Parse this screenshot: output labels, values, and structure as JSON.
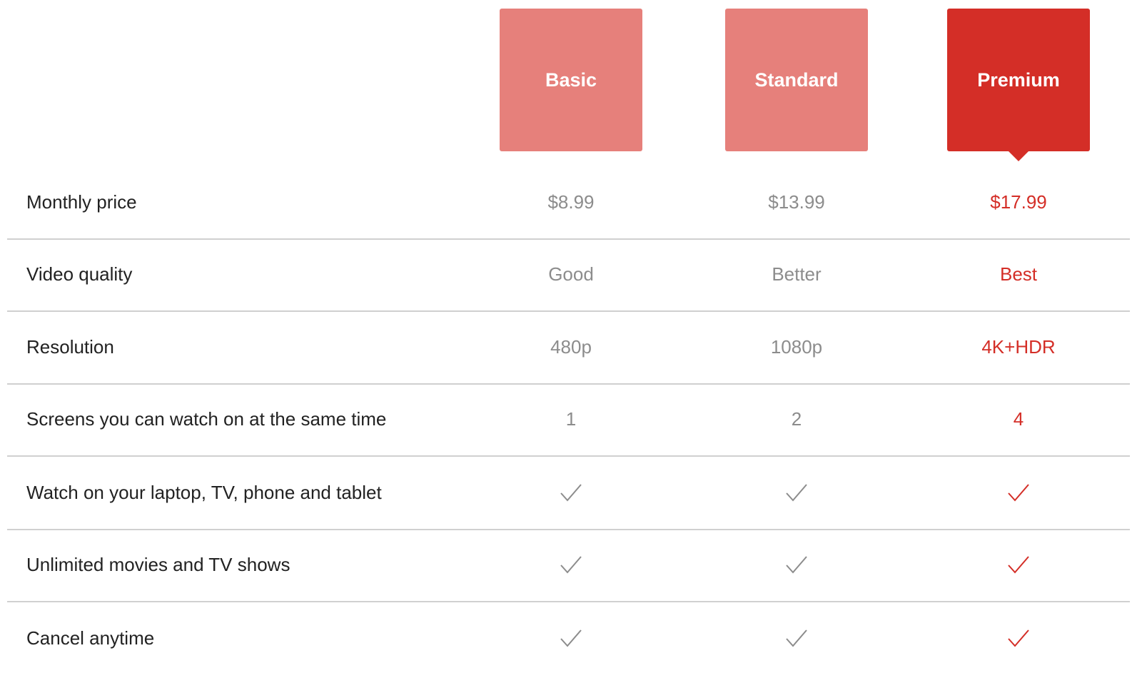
{
  "plans": [
    {
      "name": "Basic",
      "selected": false
    },
    {
      "name": "Standard",
      "selected": false
    },
    {
      "name": "Premium",
      "selected": true
    }
  ],
  "colors": {
    "accent": "#d42e27",
    "unselected_plan": "#e6807b",
    "muted_text": "#8c8c8c",
    "divider": "#d0d0d0"
  },
  "rows": [
    {
      "label": "Monthly price",
      "values": [
        "$8.99",
        "$13.99",
        "$17.99"
      ]
    },
    {
      "label": "Video quality",
      "values": [
        "Good",
        "Better",
        "Best"
      ]
    },
    {
      "label": "Resolution",
      "values": [
        "480p",
        "1080p",
        "4K+HDR"
      ]
    },
    {
      "label": "Screens you can watch on at the same time",
      "values": [
        "1",
        "2",
        "4"
      ]
    },
    {
      "label": "Watch on your laptop, TV, phone and tablet",
      "values": [
        "check-icon",
        "check-icon",
        "check-icon"
      ]
    },
    {
      "label": "Unlimited movies and TV shows",
      "values": [
        "check-icon",
        "check-icon",
        "check-icon"
      ]
    },
    {
      "label": "Cancel anytime",
      "values": [
        "check-icon",
        "check-icon",
        "check-icon"
      ]
    }
  ]
}
